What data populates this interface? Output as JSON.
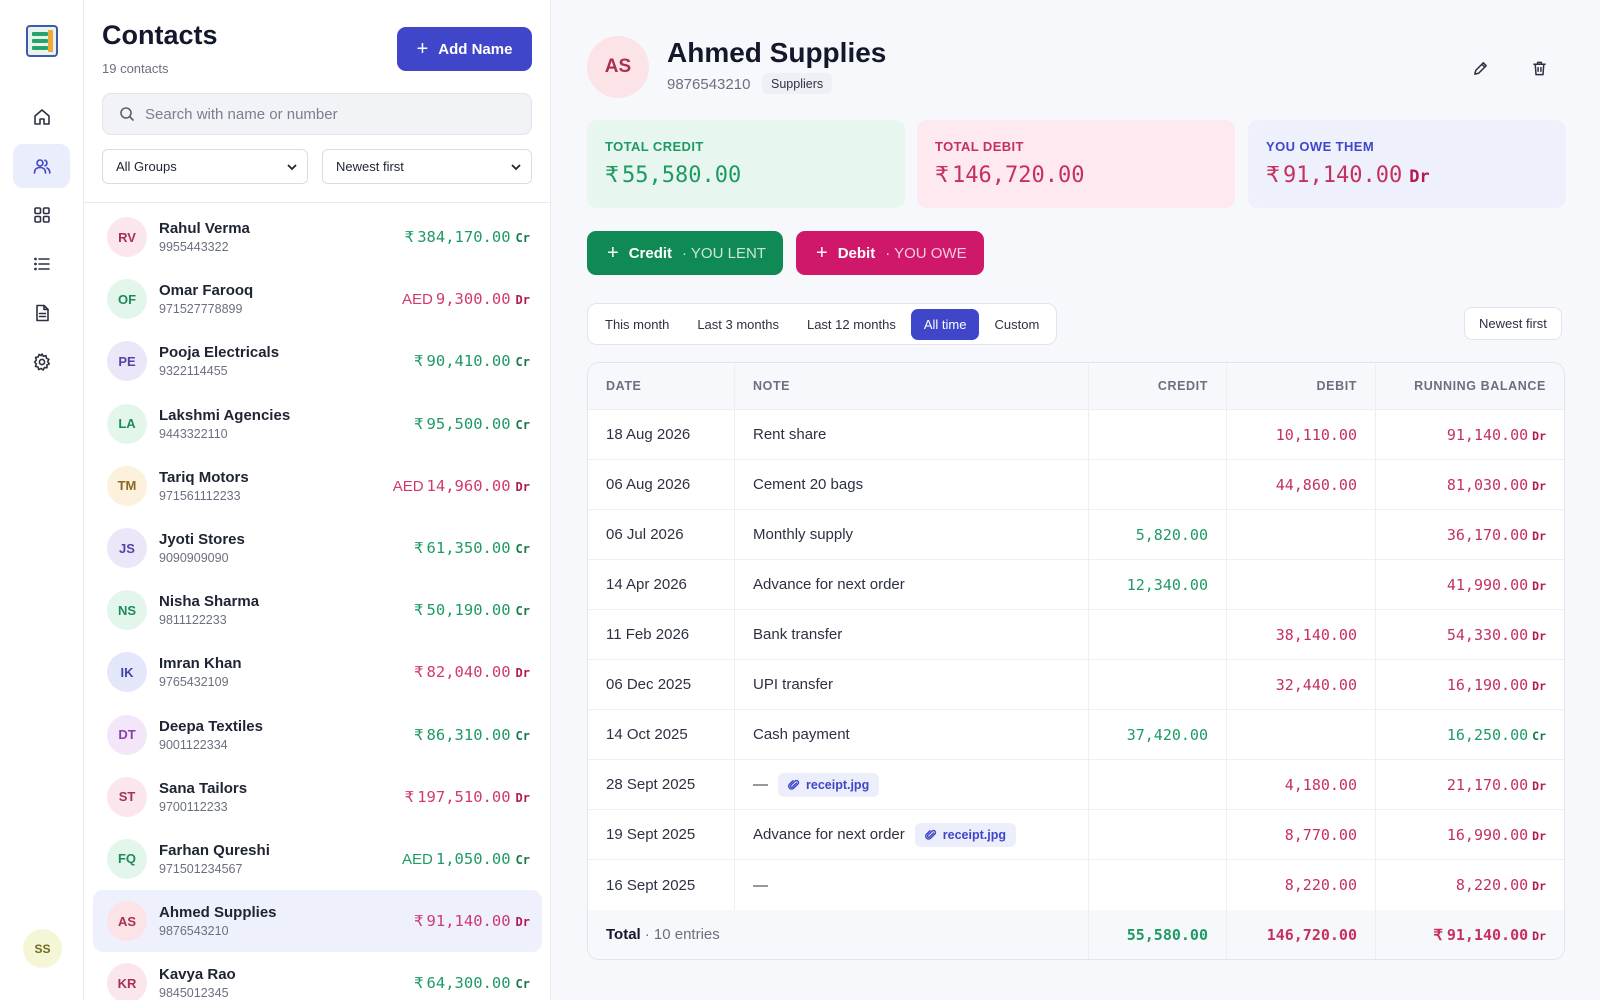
{
  "app": {
    "nav": [
      {
        "icon": "home-icon"
      },
      {
        "icon": "users-icon",
        "active": true
      },
      {
        "icon": "grid-icon"
      },
      {
        "icon": "list-icon"
      },
      {
        "icon": "document-icon"
      },
      {
        "icon": "gear-icon"
      }
    ],
    "user_initials": "SS"
  },
  "contacts": {
    "title": "Contacts",
    "count_label": "19 contacts",
    "add_button_label": "Add Name",
    "search_placeholder": "Search with name or number",
    "group_filter": "All Groups",
    "sort": "Newest first",
    "items": [
      {
        "initials": "RV",
        "name": "Rahul Verma",
        "phone": "9955443322",
        "currency": "₹",
        "amount": "384,170.00",
        "type": "Cr",
        "avatar_bg": "#fbe6ee",
        "avatar_fg": "#a73150"
      },
      {
        "initials": "OF",
        "name": "Omar Farooq",
        "phone": "971527778899",
        "currency": "AED",
        "amount": "9,300.00",
        "type": "Dr",
        "avatar_bg": "#e3f6ec",
        "avatar_fg": "#1e8a5a"
      },
      {
        "initials": "PE",
        "name": "Pooja Electricals",
        "phone": "9322114455",
        "currency": "₹",
        "amount": "90,410.00",
        "type": "Cr",
        "avatar_bg": "#ebe7f8",
        "avatar_fg": "#5b3fa8"
      },
      {
        "initials": "LA",
        "name": "Lakshmi Agencies",
        "phone": "9443322110",
        "currency": "₹",
        "amount": "95,500.00",
        "type": "Cr",
        "avatar_bg": "#e3f6ec",
        "avatar_fg": "#1e8a5a"
      },
      {
        "initials": "TM",
        "name": "Tariq Motors",
        "phone": "971561112233",
        "currency": "AED",
        "amount": "14,960.00",
        "type": "Dr",
        "avatar_bg": "#fbf1dc",
        "avatar_fg": "#8a6a1e"
      },
      {
        "initials": "JS",
        "name": "Jyoti Stores",
        "phone": "9090909090",
        "currency": "₹",
        "amount": "61,350.00",
        "type": "Cr",
        "avatar_bg": "#ebe7f8",
        "avatar_fg": "#5b3fa8"
      },
      {
        "initials": "NS",
        "name": "Nisha Sharma",
        "phone": "9811122233",
        "currency": "₹",
        "amount": "50,190.00",
        "type": "Cr",
        "avatar_bg": "#e3f6ec",
        "avatar_fg": "#1e8a5a"
      },
      {
        "initials": "IK",
        "name": "Imran Khan",
        "phone": "9765432109",
        "currency": "₹",
        "amount": "82,040.00",
        "type": "Dr",
        "avatar_bg": "#e4e7fa",
        "avatar_fg": "#3f46a8"
      },
      {
        "initials": "DT",
        "name": "Deepa Textiles",
        "phone": "9001122334",
        "currency": "₹",
        "amount": "86,310.00",
        "type": "Cr",
        "avatar_bg": "#f3e6f8",
        "avatar_fg": "#8a3fa8"
      },
      {
        "initials": "ST",
        "name": "Sana Tailors",
        "phone": "9700112233",
        "currency": "₹",
        "amount": "197,510.00",
        "type": "Dr",
        "avatar_bg": "#fbe6ee",
        "avatar_fg": "#a73150"
      },
      {
        "initials": "FQ",
        "name": "Farhan Qureshi",
        "phone": "971501234567",
        "currency": "AED",
        "amount": "1,050.00",
        "type": "Cr",
        "avatar_bg": "#e3f6ec",
        "avatar_fg": "#1e8a5a"
      },
      {
        "initials": "AS",
        "name": "Ahmed Supplies",
        "phone": "9876543210",
        "currency": "₹",
        "amount": "91,140.00",
        "type": "Dr",
        "avatar_bg": "#fbe3e8",
        "avatar_fg": "#a73150",
        "selected": true
      },
      {
        "initials": "KR",
        "name": "Kavya Rao",
        "phone": "9845012345",
        "currency": "₹",
        "amount": "64,300.00",
        "type": "Cr",
        "avatar_bg": "#fbe6ee",
        "avatar_fg": "#a73150"
      }
    ]
  },
  "detail": {
    "initials": "AS",
    "name": "Ahmed Supplies",
    "phone": "9876543210",
    "group": "Suppliers",
    "summary": {
      "credit": {
        "label": "TOTAL CREDIT",
        "currency": "₹",
        "value": "55,580.00"
      },
      "debit": {
        "label": "TOTAL DEBIT",
        "currency": "₹",
        "value": "146,720.00"
      },
      "owe": {
        "label": "YOU OWE THEM",
        "currency": "₹",
        "value": "91,140.00",
        "tag": "Dr"
      }
    },
    "actions": {
      "credit": {
        "label": "Credit",
        "sub": "· YOU LENT"
      },
      "debit": {
        "label": "Debit",
        "sub": "· YOU OWE"
      }
    },
    "filters": [
      "This month",
      "Last 3 months",
      "Last 12 months",
      "All time",
      "Custom"
    ],
    "active_filter": "All time",
    "sort": "Newest first",
    "table": {
      "headers": {
        "date": "DATE",
        "note": "NOTE",
        "credit": "CREDIT",
        "debit": "DEBIT",
        "balance": "RUNNING BALANCE"
      },
      "rows": [
        {
          "date": "18 Aug 2026",
          "note": "Rent share",
          "credit": "",
          "debit": "10,110.00",
          "balance": "91,140.00",
          "type": "Dr"
        },
        {
          "date": "06 Aug 2026",
          "note": "Cement 20 bags",
          "credit": "",
          "debit": "44,860.00",
          "balance": "81,030.00",
          "type": "Dr"
        },
        {
          "date": "06 Jul 2026",
          "note": "Monthly supply",
          "credit": "5,820.00",
          "debit": "",
          "balance": "36,170.00",
          "type": "Dr"
        },
        {
          "date": "14 Apr 2026",
          "note": "Advance for next order",
          "credit": "12,340.00",
          "debit": "",
          "balance": "41,990.00",
          "type": "Dr"
        },
        {
          "date": "11 Feb 2026",
          "note": "Bank transfer",
          "credit": "",
          "debit": "38,140.00",
          "balance": "54,330.00",
          "type": "Dr"
        },
        {
          "date": "06 Dec 2025",
          "note": "UPI transfer",
          "credit": "",
          "debit": "32,440.00",
          "balance": "16,190.00",
          "type": "Dr"
        },
        {
          "date": "14 Oct 2025",
          "note": "Cash payment",
          "credit": "37,420.00",
          "debit": "",
          "balance": "16,250.00",
          "type": "Cr"
        },
        {
          "date": "28 Sept 2025",
          "note": "—",
          "attachment": "receipt.jpg",
          "credit": "",
          "debit": "4,180.00",
          "balance": "21,170.00",
          "type": "Dr"
        },
        {
          "date": "19 Sept 2025",
          "note": "Advance for next order",
          "attachment": "receipt.jpg",
          "credit": "",
          "debit": "8,770.00",
          "balance": "16,990.00",
          "type": "Dr"
        },
        {
          "date": "16 Sept 2025",
          "note": "—",
          "credit": "",
          "debit": "8,220.00",
          "balance": "8,220.00",
          "type": "Dr"
        }
      ],
      "footer": {
        "label": "Total",
        "entries": "· 10 entries",
        "credit": "55,580.00",
        "debit": "146,720.00",
        "currency": "₹",
        "balance": "91,140.00",
        "type": "Dr"
      }
    }
  }
}
